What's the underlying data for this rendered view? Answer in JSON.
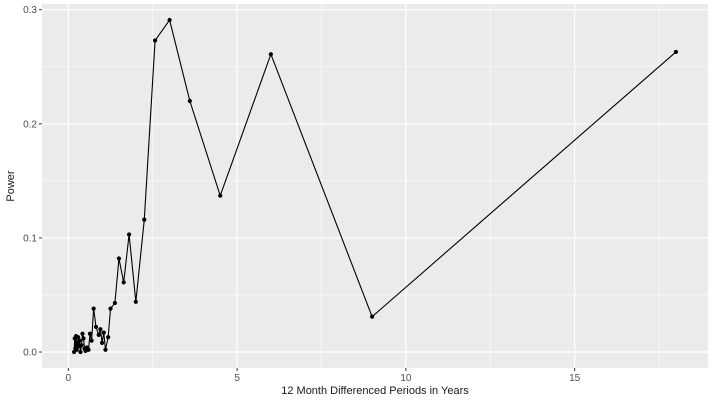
{
  "chart_data": {
    "type": "line",
    "xlabel": "12 Month Differenced Periods in Years",
    "ylabel": "Power",
    "xlim": [
      -0.78,
      18.95
    ],
    "ylim": [
      -0.014,
      0.305
    ],
    "x_ticks": [
      0,
      5,
      10,
      15
    ],
    "x_tick_labels": [
      "0",
      "5",
      "10",
      "15"
    ],
    "y_ticks": [
      0.0,
      0.1,
      0.2,
      0.3
    ],
    "y_tick_labels": [
      "0.0",
      "0.1",
      "0.2",
      "0.3"
    ],
    "panel_background": "#ebebeb",
    "grid": true,
    "grid_color": "#ffffff",
    "line_color": "#000000",
    "point_color": "#000000",
    "series": [
      {
        "x": [
          0.17,
          0.19,
          0.21,
          0.23,
          0.25,
          0.27,
          0.29,
          0.31,
          0.33,
          0.36,
          0.39,
          0.42,
          0.45,
          0.48,
          0.51,
          0.55,
          0.6,
          0.64,
          0.69,
          0.75,
          0.82,
          0.9,
          0.95,
          1.0,
          1.05,
          1.1,
          1.18,
          1.25,
          1.38,
          1.5,
          1.64,
          1.8,
          2.0,
          2.25,
          2.57,
          3.0,
          3.6,
          4.5,
          6.0,
          9.0,
          18.0
        ],
        "y": [
          0.0,
          0.012,
          0.003,
          0.014,
          0.002,
          0.008,
          0.013,
          0.005,
          0.01,
          0.0,
          0.006,
          0.016,
          0.012,
          0.003,
          0.001,
          0.004,
          0.002,
          0.016,
          0.01,
          0.038,
          0.022,
          0.015,
          0.02,
          0.008,
          0.017,
          0.002,
          0.013,
          0.038,
          0.043,
          0.082,
          0.061,
          0.103,
          0.044,
          0.116,
          0.273,
          0.291,
          0.22,
          0.137,
          0.261,
          0.031,
          0.263
        ]
      }
    ]
  }
}
